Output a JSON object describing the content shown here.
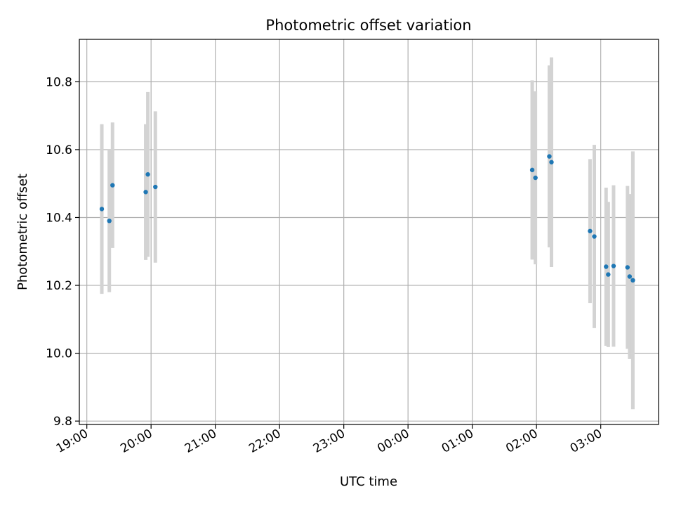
{
  "chart_data": {
    "type": "scatter",
    "title": "Photometric offset variation",
    "xlabel": "UTC time",
    "ylabel": "Photometric offset",
    "grid": true,
    "x_axis": {
      "type": "time",
      "ticks": [
        "19:00",
        "20:00",
        "21:00",
        "22:00",
        "23:00",
        "00:00",
        "01:00",
        "02:00",
        "03:00"
      ],
      "range": [
        "18:53",
        "03:54"
      ]
    },
    "y_axis": {
      "range": [
        9.79,
        10.925
      ],
      "ticks": [
        "9.8",
        "10.0",
        "10.2",
        "10.4",
        "10.6",
        "10.8"
      ]
    },
    "colors": {
      "points": "#1f77b4",
      "errorbars": "#d3d3d3",
      "grid": "#b0b0b0"
    },
    "points": [
      {
        "time": "19:14",
        "y": 10.425,
        "yerr": 0.25
      },
      {
        "time": "19:21",
        "y": 10.39,
        "yerr": 0.21
      },
      {
        "time": "19:24",
        "y": 10.495,
        "yerr": 0.185
      },
      {
        "time": "19:55",
        "y": 10.475,
        "yerr": 0.2
      },
      {
        "time": "19:57",
        "y": 10.527,
        "yerr": 0.243
      },
      {
        "time": "20:04",
        "y": 10.49,
        "yerr": 0.223
      },
      {
        "time": "01:56",
        "y": 10.54,
        "yerr": 0.264
      },
      {
        "time": "01:59",
        "y": 10.517,
        "yerr": 0.255
      },
      {
        "time": "02:12",
        "y": 10.58,
        "yerr": 0.268
      },
      {
        "time": "02:14",
        "y": 10.563,
        "yerr": 0.309
      },
      {
        "time": "02:50",
        "y": 10.36,
        "yerr": 0.212
      },
      {
        "time": "02:54",
        "y": 10.344,
        "yerr": 0.27
      },
      {
        "time": "03:05",
        "y": 10.255,
        "yerr": 0.233
      },
      {
        "time": "03:07",
        "y": 10.232,
        "yerr": 0.214
      },
      {
        "time": "03:12",
        "y": 10.257,
        "yerr": 0.238
      },
      {
        "time": "03:25",
        "y": 10.253,
        "yerr": 0.24
      },
      {
        "time": "03:27",
        "y": 10.226,
        "yerr": 0.243
      },
      {
        "time": "03:30",
        "y": 10.215,
        "yerr": 0.38
      }
    ]
  }
}
